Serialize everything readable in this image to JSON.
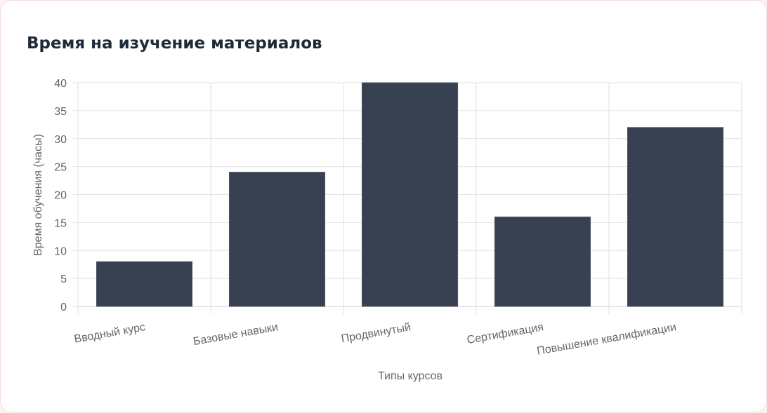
{
  "chart_data": {
    "type": "bar",
    "title": "Время на изучение материалов",
    "x_label": "Типы курсов",
    "y_label": "Время обучения (часы)",
    "categories": [
      "Вводный курс",
      "Базовые навыки",
      "Продвинутый",
      "Сертификация",
      "Повышение квалификации"
    ],
    "values": [
      8,
      24,
      40,
      16,
      32
    ],
    "color": "#374151",
    "ylim": [
      0,
      40
    ],
    "yticks": [
      0,
      5,
      10,
      15,
      20,
      25,
      30,
      35,
      40
    ],
    "grid": true
  }
}
